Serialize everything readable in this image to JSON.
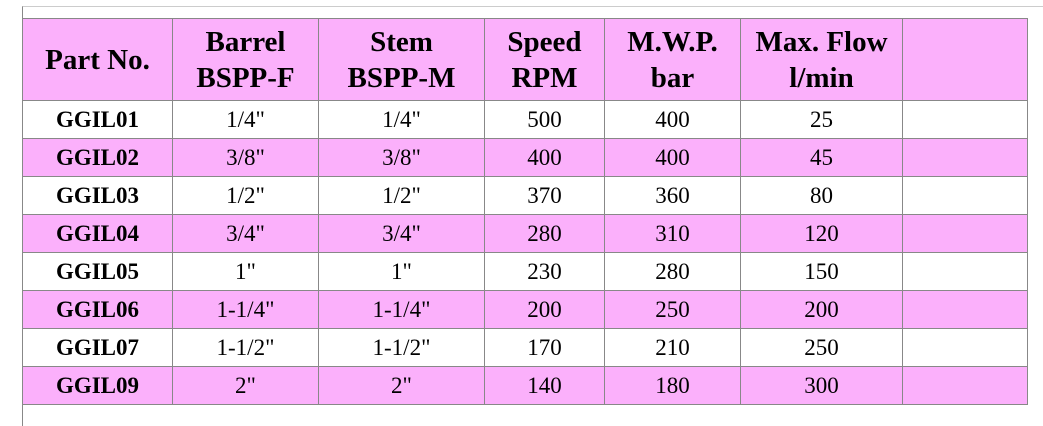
{
  "table": {
    "header": [
      [
        "Part No."
      ],
      [
        "Barrel",
        "BSPP-F"
      ],
      [
        "Stem",
        "BSPP-M"
      ],
      [
        "Speed",
        "RPM"
      ],
      [
        "M.W.P.",
        "bar"
      ],
      [
        "Max. Flow",
        "l/min"
      ]
    ],
    "rows": [
      [
        "GGIL01",
        "1/4\"",
        "1/4\"",
        500,
        400,
        25
      ],
      [
        "GGIL02",
        "3/8\"",
        "3/8\"",
        400,
        400,
        45
      ],
      [
        "GGIL03",
        "1/2\"",
        "1/2\"",
        370,
        360,
        80
      ],
      [
        "GGIL04",
        "3/4\"",
        "3/4\"",
        280,
        310,
        120
      ],
      [
        "GGIL05",
        "1\"",
        "1\"",
        230,
        280,
        150
      ],
      [
        "GGIL06",
        "1-1/4\"",
        "1-1/4\"",
        200,
        250,
        200
      ],
      [
        "GGIL07",
        "1-1/2\"",
        "1-1/2\"",
        170,
        210,
        250
      ],
      [
        "GGIL09",
        "2\"",
        "2\"",
        140,
        180,
        300
      ]
    ]
  }
}
